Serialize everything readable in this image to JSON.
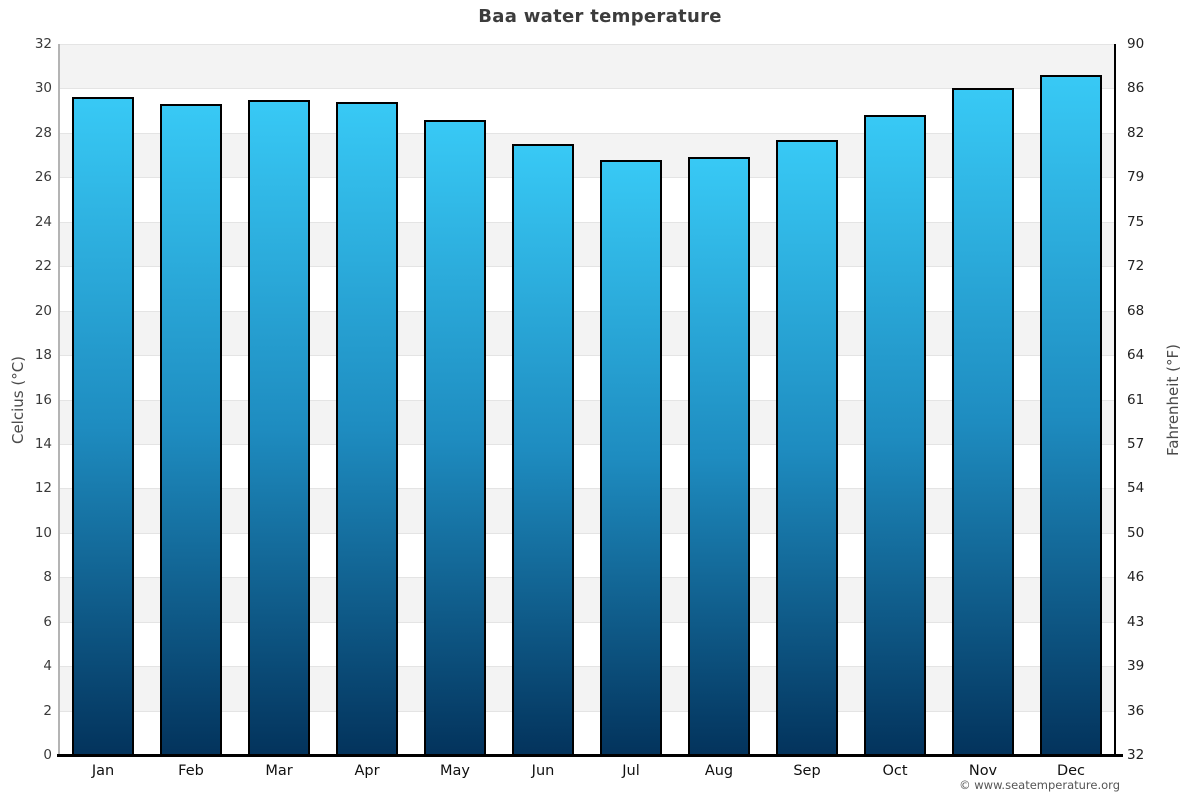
{
  "chart_data": {
    "type": "bar",
    "title": "Baa water temperature",
    "ylabel_left": "Celcius (°C)",
    "ylabel_right": "Fahrenheit (°F)",
    "categories": [
      "Jan",
      "Feb",
      "Mar",
      "Apr",
      "May",
      "Jun",
      "Jul",
      "Aug",
      "Sep",
      "Oct",
      "Nov",
      "Dec"
    ],
    "values": [
      29.6,
      29.3,
      29.5,
      29.4,
      28.6,
      27.5,
      26.8,
      26.9,
      27.7,
      28.8,
      30.0,
      30.6
    ],
    "unit": "°C",
    "ylim": [
      0,
      32
    ],
    "celsius_ticks": [
      0,
      2,
      4,
      6,
      8,
      10,
      12,
      14,
      16,
      18,
      20,
      22,
      24,
      26,
      28,
      30,
      32
    ],
    "fahrenheit_ticks": [
      32,
      36,
      39,
      43,
      46,
      50,
      54,
      57,
      61,
      64,
      68,
      72,
      75,
      79,
      82,
      86,
      90
    ],
    "grid": "alternating horizontal bands every 2°C, gray on 30-32 / 26-28 / ... down to 2-4",
    "legend": "none",
    "colors": {
      "bar_gradient_top": "#38c9f5",
      "bar_gradient_mid": "#1e8cc0",
      "bar_gradient_bottom": "#03335c",
      "bar_border": "#000000",
      "band_gray": "#f3f3f3",
      "gridline": "#e4e4e4",
      "axis_left": "#b4b4b4",
      "axis_right_bottom": "#000000",
      "title_text": "#3c3c3c"
    }
  },
  "footer": {
    "attribution": "© www.seatemperature.org"
  }
}
